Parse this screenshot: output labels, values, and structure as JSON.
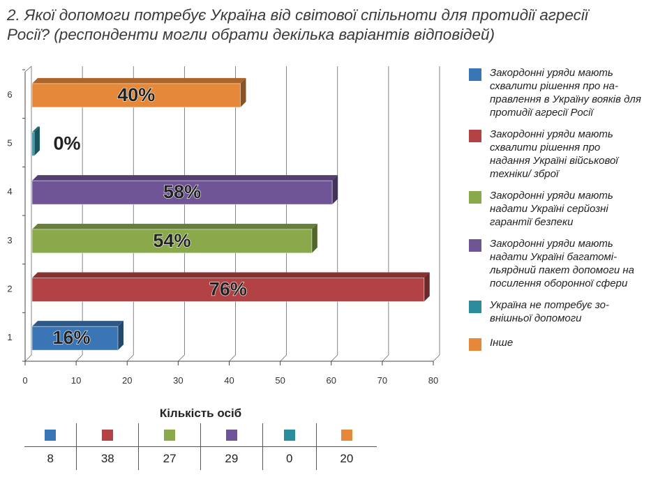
{
  "title": "2. Якої допомоги потребує Україна від світової спільноти для протидії агресії Росії? (респонденти могли обрати декілька варіантів відповідей)",
  "chart_data": {
    "type": "bar",
    "orientation": "horizontal",
    "categories": [
      "1",
      "2",
      "3",
      "4",
      "5",
      "6"
    ],
    "values": [
      16,
      76,
      54,
      58,
      0,
      40
    ],
    "labels": [
      "16%",
      "76%",
      "54%",
      "58%",
      "0%",
      "40%"
    ],
    "colors": [
      "#3a76b5",
      "#b24244",
      "#89a94a",
      "#6f5596",
      "#2c8c9e",
      "#e5883a"
    ],
    "x_ticks": [
      0,
      10,
      20,
      30,
      40,
      50,
      60,
      70,
      80
    ],
    "xlim": [
      0,
      80
    ],
    "grid": true,
    "legend_position": "right",
    "legend": [
      "Закордонні уряди мають схвалити рішення про на-правлення в Україну вояків для протидії агресії Росії",
      "Закордонні уряди мають схвалити рішення про надання Україні військової техніки/ зброї",
      "Закордонні уряди мають надати Україні серйозні гарантії безпеки",
      "Закордонні уряди мають надати Україні багатомі-льярдний пакет допомоги на посилення оборонної сфери",
      "Україна не потребує зо-внішньої допомоги",
      "Інше"
    ]
  },
  "table": {
    "title": "Кількість осіб",
    "counts": [
      "8",
      "38",
      "27",
      "29",
      "0",
      "20"
    ]
  }
}
